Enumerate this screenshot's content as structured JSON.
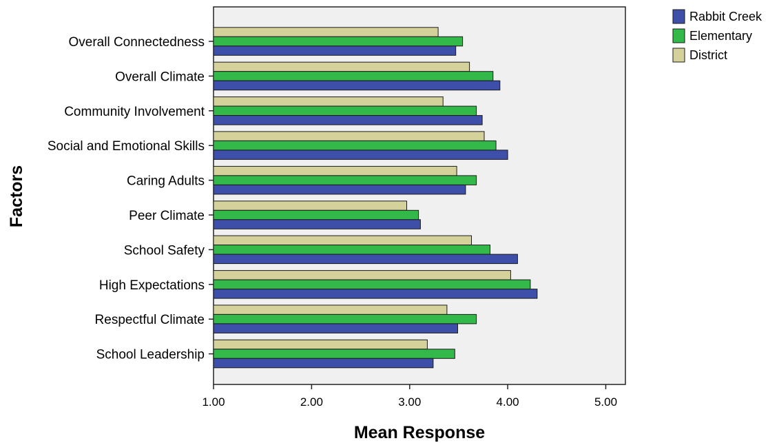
{
  "chart_data": {
    "type": "bar",
    "orientation": "horizontal",
    "title": "",
    "xlabel": "Mean Response",
    "ylabel": "Factors",
    "xlim": [
      1.0,
      5.2
    ],
    "xticks": [
      "1.00",
      "2.00",
      "3.00",
      "4.00",
      "5.00"
    ],
    "xtick_values": [
      1,
      2,
      3,
      4,
      5
    ],
    "grid": false,
    "legend_position": "top-right",
    "categories": [
      "Overall Connectedness",
      "Overall Climate",
      "Community Involvement",
      "Social and Emotional Skills",
      "Caring Adults",
      "Peer Climate",
      "School Safety",
      "High Expectations",
      "Respectful Climate",
      "School Leadership"
    ],
    "series": [
      {
        "name": "Rabbit Creek",
        "color": "#3d4fa8",
        "values": [
          3.47,
          3.92,
          3.74,
          4.0,
          3.57,
          3.11,
          4.1,
          4.3,
          3.49,
          3.24
        ]
      },
      {
        "name": "Elementary",
        "color": "#33b84a",
        "values": [
          3.54,
          3.85,
          3.68,
          3.88,
          3.68,
          3.09,
          3.82,
          4.23,
          3.68,
          3.46
        ]
      },
      {
        "name": "District",
        "color": "#d4d19a",
        "values": [
          3.29,
          3.61,
          3.34,
          3.76,
          3.48,
          2.97,
          3.63,
          4.03,
          3.38,
          3.18
        ]
      }
    ]
  }
}
